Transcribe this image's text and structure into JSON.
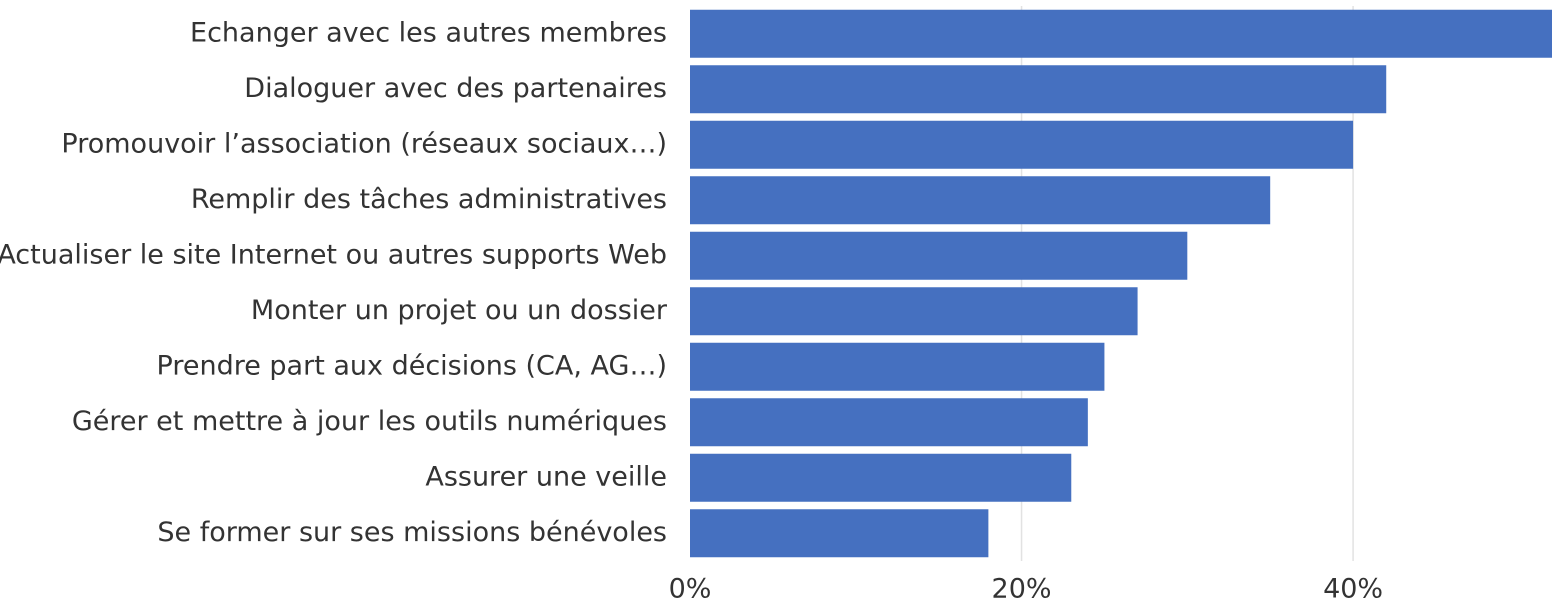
{
  "chart_data": {
    "type": "hbar",
    "categories": [
      "Echanger avec les autres membres",
      "Dialoguer avec des partenaires",
      "Promouvoir l’association (réseaux sociaux…)",
      "Remplir des tâches administratives",
      "Actualiser le site Internet ou autres supports Web",
      "Monter un projet ou un dossier",
      "Prendre part aux décisions (CA, AG…)",
      "Gérer et mettre à jour les outils numériques",
      "Assurer une veille",
      "Se former sur ses missions bénévoles"
    ],
    "values": [
      52,
      42,
      40,
      35,
      30,
      27,
      25,
      24,
      23,
      18
    ],
    "color": "#4570c0",
    "xlim": [
      0,
      52
    ],
    "xticks": [
      {
        "value": 0,
        "label": "0%"
      },
      {
        "value": 20,
        "label": "20%"
      },
      {
        "value": 40,
        "label": "40%"
      }
    ],
    "grid": true
  }
}
